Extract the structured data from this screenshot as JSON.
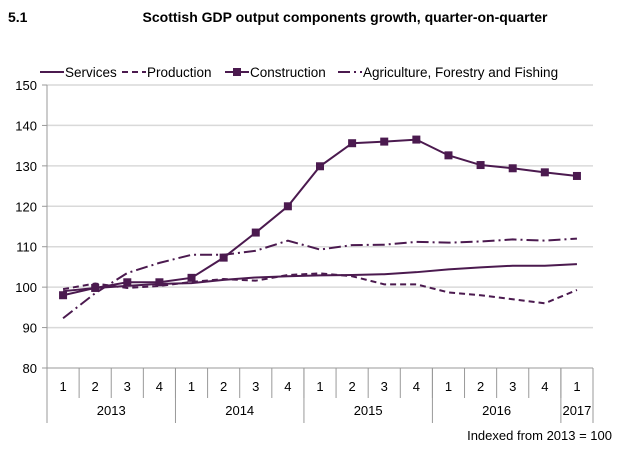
{
  "chart_data": {
    "type": "line",
    "number": "5.1",
    "title": "Scottish GDP output components growth, quarter-on-quarter",
    "note": "Indexed  from 2013  = 100",
    "ylim": [
      80,
      150
    ],
    "yticks": [
      80,
      90,
      100,
      110,
      120,
      130,
      140,
      150
    ],
    "grid": true,
    "legend_position": "top",
    "color": "#4b1a4f",
    "quarters": [
      "1",
      "2",
      "3",
      "4",
      "1",
      "2",
      "3",
      "4",
      "1",
      "2",
      "3",
      "4",
      "1",
      "2",
      "3",
      "4",
      "1"
    ],
    "years": [
      {
        "label": "2013",
        "span": 4
      },
      {
        "label": "2014",
        "span": 4
      },
      {
        "label": "2015",
        "span": 4
      },
      {
        "label": "2016",
        "span": 4
      },
      {
        "label": "2017",
        "span": 1
      }
    ],
    "series": [
      {
        "name": "Services",
        "style": "solid",
        "values": [
          99,
          99.8,
          100.3,
          100.8,
          101,
          101.8,
          102.4,
          102.7,
          102.9,
          103,
          103.2,
          103.7,
          104.4,
          104.9,
          105.3,
          105.3,
          105.7
        ]
      },
      {
        "name": "Production",
        "style": "dashed",
        "values": [
          99.5,
          100.9,
          99.8,
          100.3,
          101.3,
          102,
          101.6,
          103,
          103.4,
          102.7,
          100.7,
          100.7,
          98.7,
          98,
          97,
          96,
          99.3
        ]
      },
      {
        "name": "Construction",
        "style": "solid-square",
        "values": [
          98,
          99.8,
          101.2,
          101.2,
          102.3,
          107.3,
          113.5,
          120,
          129.9,
          135.6,
          136,
          136.5,
          132.6,
          130.2,
          129.4,
          128.4,
          127.5
        ]
      },
      {
        "name": "Agriculture, Forestry and Fishing",
        "style": "dashdot",
        "values": [
          92.3,
          98.5,
          103.5,
          106,
          108,
          108,
          109,
          111.5,
          109.3,
          110.4,
          110.5,
          111.2,
          111,
          111.3,
          111.8,
          111.5,
          112
        ]
      }
    ]
  }
}
